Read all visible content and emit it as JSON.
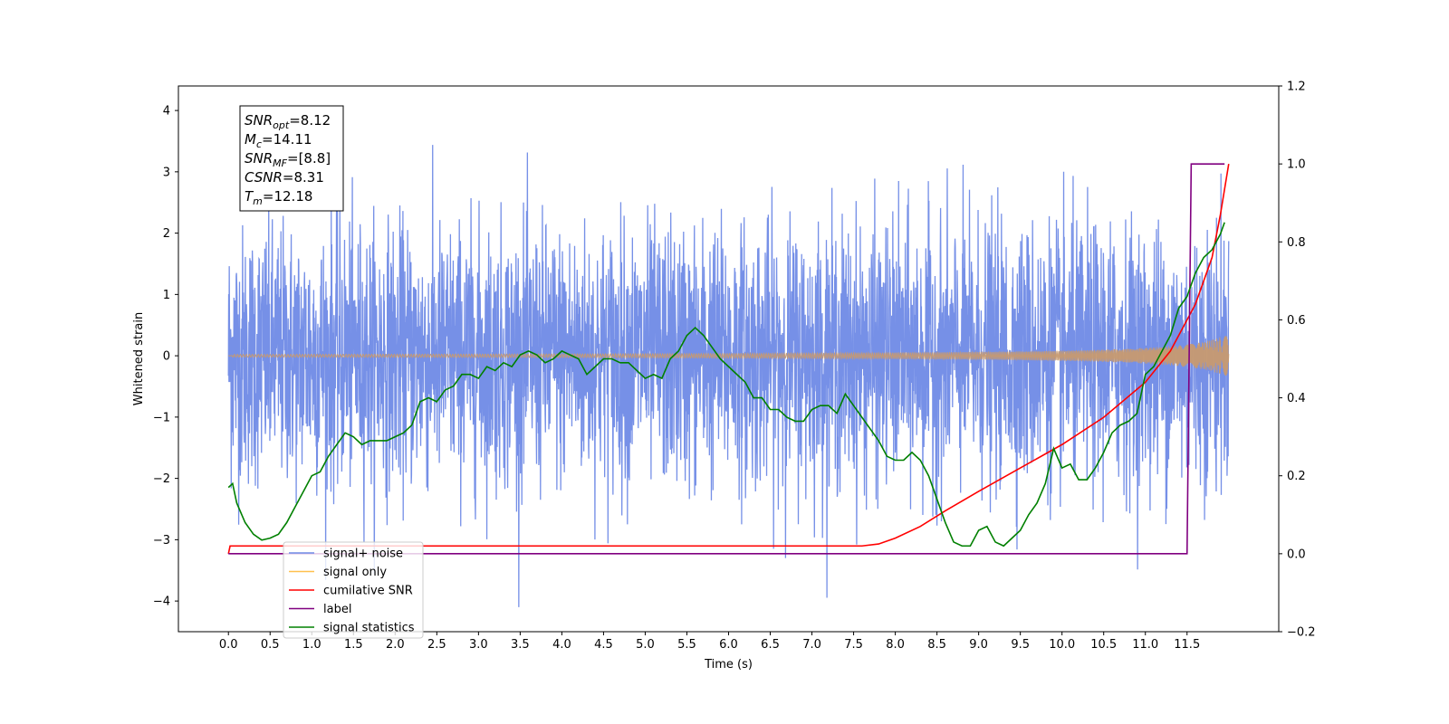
{
  "chart_data": {
    "type": "line",
    "title": "",
    "xlabel": "Time (s)",
    "ylabel": "Whitened strain",
    "xlim": [
      -0.6,
      12.6
    ],
    "ylim": [
      -4.5,
      4.4
    ],
    "y2lim": [
      -0.2,
      1.2
    ],
    "x_ticks": [
      "0.0",
      "0.5",
      "1.0",
      "1.5",
      "2.0",
      "2.5",
      "3.0",
      "3.5",
      "4.0",
      "4.5",
      "5.0",
      "5.5",
      "6.0",
      "6.5",
      "7.0",
      "7.5",
      "8.0",
      "8.5",
      "9.0",
      "9.5",
      "10.0",
      "10.5",
      "11.0",
      "11.5"
    ],
    "y_ticks": [
      "-4",
      "-3",
      "-2",
      "-1",
      "0",
      "1",
      "2",
      "3",
      "4"
    ],
    "y2_ticks": [
      "-0.2",
      "0.0",
      "0.2",
      "0.4",
      "0.6",
      "0.8",
      "1.0",
      "1.2"
    ],
    "legend_position": "lower-left",
    "info_box": {
      "lines": [
        {
          "sym": "SNR",
          "sub": "opt",
          "val": "=8.12"
        },
        {
          "sym": "M",
          "sub": "c",
          "val": "=14.11"
        },
        {
          "sym": "SNR",
          "sub": "MF",
          "val": "=[8.8]"
        },
        {
          "sym": "CSNR",
          "sub": "",
          "val": "=8.31"
        },
        {
          "sym": "T",
          "sub": "m",
          "val": "=12.18"
        }
      ]
    },
    "series": [
      {
        "name": "signal+ noise",
        "color": "#6f8ae6",
        "axis": "left",
        "kind": "noise",
        "x_range": [
          0,
          12
        ],
        "amplitude_envelope": 2.5
      },
      {
        "name": "signal only",
        "color": "#ffc04d",
        "axis": "left",
        "kind": "chirp",
        "x_range": [
          0,
          12
        ],
        "final_amplitude": 0.65
      },
      {
        "name": "cumilative SNR",
        "color": "#ff0000",
        "axis": "right",
        "x": [
          0,
          0.02,
          7.6,
          7.8,
          8.0,
          8.3,
          8.6,
          9.0,
          9.5,
          10.0,
          10.5,
          11.0,
          11.3,
          11.6,
          11.8,
          11.9,
          12.0
        ],
        "y": [
          0.0,
          0.02,
          0.02,
          0.025,
          0.04,
          0.07,
          0.11,
          0.16,
          0.22,
          0.28,
          0.35,
          0.44,
          0.52,
          0.64,
          0.76,
          0.87,
          1.0
        ]
      },
      {
        "name": "label",
        "color": "#800080",
        "axis": "right",
        "x": [
          0,
          11.5,
          11.55,
          11.95
        ],
        "y": [
          0.0,
          0.0,
          1.0,
          1.0
        ]
      },
      {
        "name": "signal statistics",
        "color": "#008000",
        "axis": "right",
        "x": [
          0,
          0.05,
          0.1,
          0.2,
          0.3,
          0.4,
          0.5,
          0.6,
          0.7,
          0.8,
          0.9,
          1.0,
          1.1,
          1.2,
          1.3,
          1.4,
          1.5,
          1.6,
          1.7,
          1.8,
          1.9,
          2.0,
          2.1,
          2.2,
          2.3,
          2.4,
          2.5,
          2.6,
          2.7,
          2.8,
          2.9,
          3.0,
          3.1,
          3.2,
          3.3,
          3.4,
          3.5,
          3.6,
          3.7,
          3.8,
          3.9,
          4.0,
          4.1,
          4.2,
          4.3,
          4.4,
          4.5,
          4.6,
          4.7,
          4.8,
          4.9,
          5.0,
          5.1,
          5.2,
          5.3,
          5.4,
          5.5,
          5.6,
          5.7,
          5.8,
          5.9,
          6.0,
          6.1,
          6.2,
          6.3,
          6.4,
          6.5,
          6.6,
          6.7,
          6.8,
          6.9,
          7.0,
          7.1,
          7.2,
          7.3,
          7.4,
          7.5,
          7.6,
          7.7,
          7.8,
          7.9,
          8.0,
          8.1,
          8.2,
          8.3,
          8.4,
          8.5,
          8.6,
          8.7,
          8.8,
          8.9,
          9.0,
          9.1,
          9.2,
          9.3,
          9.4,
          9.5,
          9.6,
          9.7,
          9.8,
          9.9,
          10.0,
          10.1,
          10.2,
          10.3,
          10.4,
          10.5,
          10.6,
          10.7,
          10.8,
          10.9,
          11.0,
          11.1,
          11.2,
          11.3,
          11.4,
          11.5,
          11.6,
          11.7,
          11.8,
          11.9,
          11.95
        ],
        "y": [
          0.17,
          0.18,
          0.13,
          0.08,
          0.05,
          0.035,
          0.04,
          0.05,
          0.08,
          0.12,
          0.16,
          0.2,
          0.21,
          0.25,
          0.28,
          0.31,
          0.3,
          0.28,
          0.29,
          0.29,
          0.29,
          0.3,
          0.31,
          0.33,
          0.39,
          0.4,
          0.39,
          0.42,
          0.43,
          0.46,
          0.46,
          0.45,
          0.48,
          0.47,
          0.49,
          0.48,
          0.51,
          0.52,
          0.51,
          0.49,
          0.5,
          0.52,
          0.51,
          0.5,
          0.46,
          0.48,
          0.5,
          0.5,
          0.49,
          0.49,
          0.47,
          0.45,
          0.46,
          0.45,
          0.5,
          0.52,
          0.56,
          0.58,
          0.56,
          0.53,
          0.5,
          0.48,
          0.46,
          0.44,
          0.4,
          0.4,
          0.37,
          0.37,
          0.35,
          0.34,
          0.34,
          0.37,
          0.38,
          0.38,
          0.36,
          0.41,
          0.38,
          0.35,
          0.32,
          0.29,
          0.25,
          0.24,
          0.24,
          0.26,
          0.24,
          0.2,
          0.14,
          0.08,
          0.03,
          0.02,
          0.02,
          0.06,
          0.07,
          0.03,
          0.02,
          0.04,
          0.06,
          0.1,
          0.13,
          0.18,
          0.27,
          0.22,
          0.23,
          0.19,
          0.19,
          0.22,
          0.26,
          0.31,
          0.33,
          0.34,
          0.36,
          0.46,
          0.48,
          0.52,
          0.56,
          0.63,
          0.66,
          0.72,
          0.76,
          0.78,
          0.82,
          0.85
        ]
      }
    ]
  }
}
